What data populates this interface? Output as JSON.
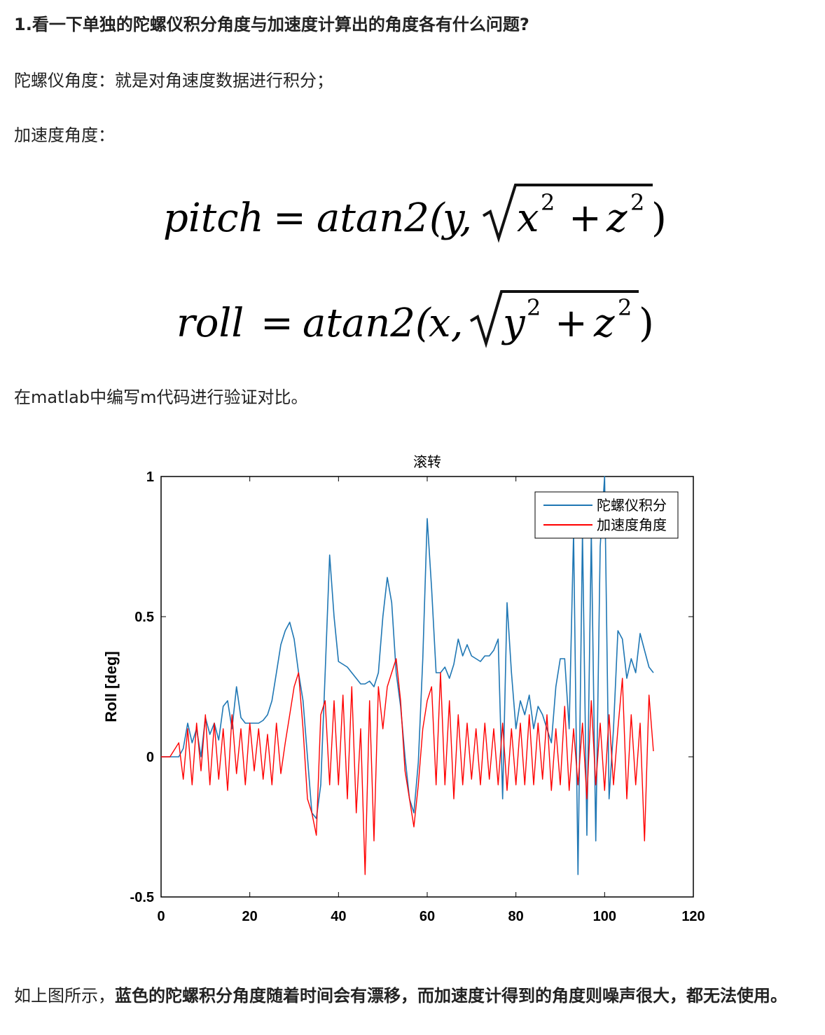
{
  "heading": "1.看一下单独的陀螺仪积分角度与加速度计算出的角度各有什么问题?",
  "gyro_line": "陀螺仪角度：就是对角速度数据进行积分；",
  "accel_line": "加速度角度：",
  "formulas": {
    "pitch": {
      "lhs": "pitch",
      "eq": "=",
      "fn": "atan2(",
      "arg1": "y,",
      "rad_a": "x",
      "rad_b": "z",
      "exp": "2",
      "plus": "+",
      "close": ")"
    },
    "roll": {
      "lhs": "roll",
      "eq": "=",
      "fn": "atan2(",
      "arg1": "x,",
      "rad_a": "y",
      "rad_b": "z",
      "exp": "2",
      "plus": "+",
      "close": ")"
    }
  },
  "matlab_line": "在matlab中编写m代码进行验证对比。",
  "conclusion": {
    "prefix": "如上图所示，",
    "bold": "蓝色的陀螺积分角度随着时间会有漂移，而加速度计得到的角度则噪声很大，都无法使用。"
  },
  "colors": {
    "gyro": "#1f77b4",
    "accel": "#ff0000",
    "axis": "#000000"
  },
  "chart_data": {
    "type": "line",
    "title": "滚转",
    "xlabel": "",
    "ylabel": "Roll [deg]",
    "xlim": [
      0,
      120
    ],
    "ylim": [
      -0.5,
      1
    ],
    "x_ticks": [
      "0",
      "20",
      "40",
      "60",
      "80",
      "100",
      "120"
    ],
    "y_ticks": [
      "-0.5",
      "0",
      "0.5",
      "1"
    ],
    "legend": {
      "position": "top-right",
      "entries": [
        "陀螺仪积分",
        "加速度角度"
      ]
    },
    "series": [
      {
        "name": "陀螺仪积分",
        "color": "#1f77b4",
        "x": [
          0,
          2,
          4,
          5,
          6,
          7,
          8,
          9,
          10,
          11,
          12,
          13,
          14,
          15,
          16,
          17,
          18,
          19,
          20,
          21,
          22,
          23,
          24,
          25,
          26,
          27,
          28,
          29,
          30,
          31,
          32,
          33,
          34,
          35,
          36,
          37,
          38,
          39,
          40,
          41,
          42,
          43,
          44,
          45,
          46,
          47,
          48,
          49,
          50,
          51,
          52,
          53,
          54,
          55,
          56,
          57,
          58,
          59,
          60,
          61,
          62,
          63,
          64,
          65,
          66,
          67,
          68,
          69,
          70,
          71,
          72,
          73,
          74,
          75,
          76,
          77,
          78,
          79,
          80,
          81,
          82,
          83,
          84,
          85,
          86,
          87,
          88,
          89,
          90,
          91,
          92,
          93,
          94,
          95,
          96,
          97,
          98,
          99,
          100,
          101,
          102,
          103,
          104,
          105,
          106,
          107,
          108,
          109,
          110,
          111
        ],
        "values": [
          0,
          0,
          0.0,
          0.03,
          0.12,
          0.05,
          0.1,
          0.0,
          0.14,
          0.08,
          0.12,
          0.06,
          0.18,
          0.2,
          0.1,
          0.25,
          0.14,
          0.12,
          0.12,
          0.12,
          0.12,
          0.13,
          0.15,
          0.2,
          0.3,
          0.4,
          0.45,
          0.48,
          0.42,
          0.3,
          0.2,
          0.0,
          -0.2,
          -0.22,
          -0.1,
          0.3,
          0.72,
          0.5,
          0.34,
          0.33,
          0.32,
          0.3,
          0.28,
          0.26,
          0.26,
          0.27,
          0.25,
          0.3,
          0.5,
          0.64,
          0.55,
          0.3,
          0.18,
          0.0,
          -0.15,
          -0.2,
          -0.02,
          0.35,
          0.85,
          0.6,
          0.3,
          0.3,
          0.32,
          0.28,
          0.33,
          0.42,
          0.36,
          0.4,
          0.36,
          0.35,
          0.34,
          0.36,
          0.36,
          0.38,
          0.42,
          -0.15,
          0.55,
          0.3,
          0.1,
          0.2,
          0.15,
          0.22,
          0.1,
          0.18,
          0.15,
          0.1,
          0.05,
          0.25,
          0.35,
          0.35,
          0.1,
          0.8,
          -0.42,
          0.8,
          -0.28,
          0.8,
          -0.3,
          0.75,
          1.0,
          -0.15,
          0.1,
          0.45,
          0.42,
          0.28,
          0.35,
          0.3,
          0.44,
          0.38,
          0.32,
          0.3
        ]
      },
      {
        "name": "加速度角度",
        "color": "#ff0000",
        "x": [
          0,
          2,
          4,
          5,
          6,
          7,
          8,
          9,
          10,
          11,
          12,
          13,
          14,
          15,
          16,
          17,
          18,
          19,
          20,
          21,
          22,
          23,
          24,
          25,
          26,
          27,
          28,
          29,
          30,
          31,
          32,
          33,
          34,
          35,
          36,
          37,
          38,
          39,
          40,
          41,
          42,
          43,
          44,
          45,
          46,
          47,
          48,
          49,
          50,
          51,
          52,
          53,
          54,
          55,
          56,
          57,
          58,
          59,
          60,
          61,
          62,
          63,
          64,
          65,
          66,
          67,
          68,
          69,
          70,
          71,
          72,
          73,
          74,
          75,
          76,
          77,
          78,
          79,
          80,
          81,
          82,
          83,
          84,
          85,
          86,
          87,
          88,
          89,
          90,
          91,
          92,
          93,
          94,
          95,
          96,
          97,
          98,
          99,
          100,
          101,
          102,
          103,
          104,
          105,
          106,
          107,
          108,
          109,
          110,
          111
        ],
        "values": [
          0,
          0,
          0.05,
          -0.08,
          0.1,
          -0.1,
          0.12,
          -0.05,
          0.15,
          -0.1,
          0.12,
          -0.08,
          0.1,
          -0.12,
          0.15,
          -0.06,
          0.1,
          -0.1,
          0.12,
          -0.05,
          0.1,
          -0.08,
          0.08,
          -0.1,
          0.12,
          -0.06,
          0.05,
          0.15,
          0.25,
          0.3,
          0.1,
          -0.15,
          -0.2,
          -0.28,
          0.15,
          0.2,
          -0.1,
          0.2,
          -0.1,
          0.22,
          -0.15,
          0.25,
          -0.2,
          0.1,
          -0.42,
          0.2,
          -0.3,
          0.25,
          0.1,
          0.25,
          0.3,
          0.35,
          0.2,
          -0.05,
          -0.15,
          -0.25,
          -0.1,
          0.1,
          0.2,
          0.25,
          -0.1,
          0.3,
          -0.1,
          0.2,
          -0.15,
          0.15,
          -0.1,
          0.12,
          -0.08,
          0.1,
          -0.1,
          0.12,
          -0.08,
          0.1,
          -0.1,
          0.12,
          -0.12,
          0.1,
          -0.1,
          0.12,
          -0.1,
          0.15,
          -0.1,
          0.12,
          -0.08,
          0.15,
          -0.12,
          0.1,
          -0.1,
          0.18,
          -0.12,
          0.1,
          -0.1,
          0.12,
          -0.15,
          0.2,
          -0.1,
          0.12,
          -0.12,
          0.15,
          -0.1,
          0.1,
          0.28,
          -0.15,
          0.15,
          -0.1,
          0.12,
          -0.3,
          0.22,
          0.02
        ]
      }
    ]
  }
}
